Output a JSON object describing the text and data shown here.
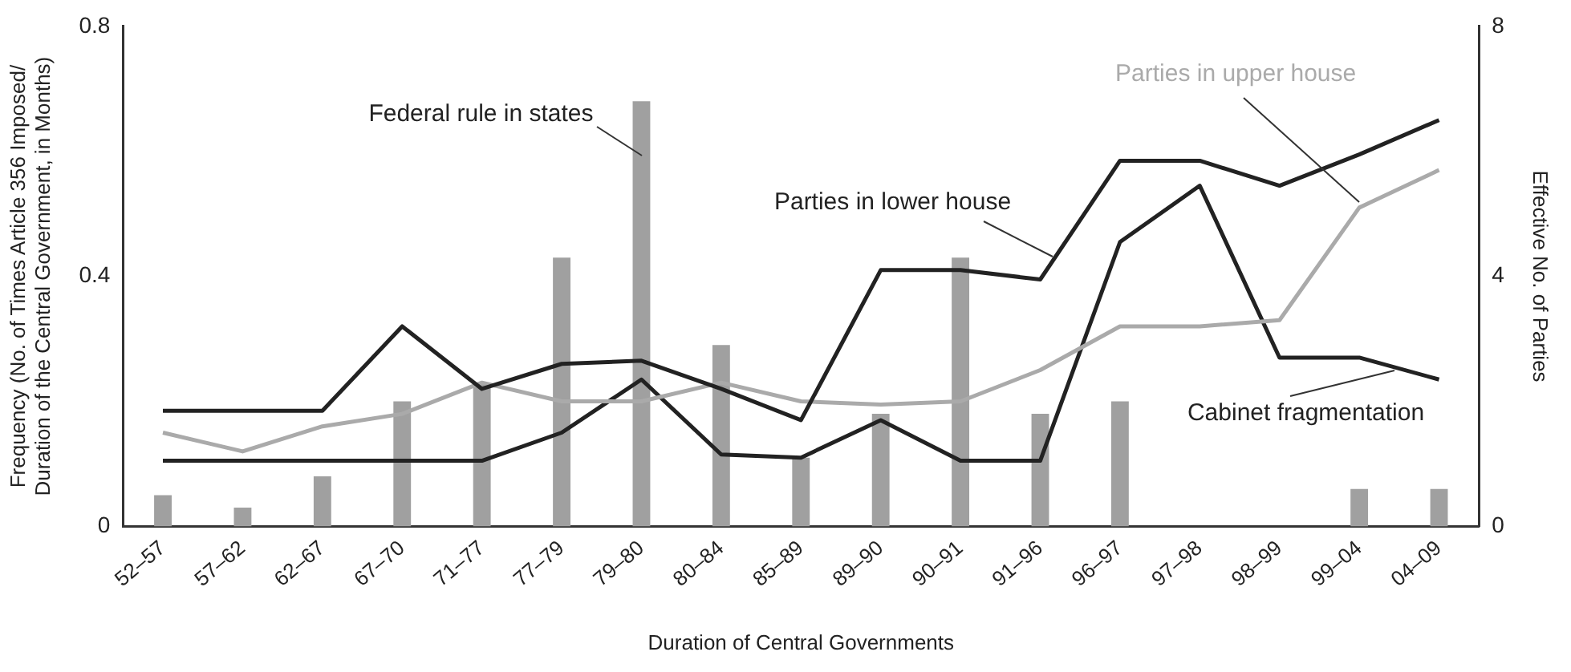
{
  "chart_data": {
    "type": "bar",
    "xlabel": "Duration of Central Governments",
    "ylabel": "Frequency (No. of Times Article 356 Imposed/ Duration of the Central Government, in Months)",
    "y2label": "Effective No. of Parties",
    "categories": [
      "52–57",
      "57–62",
      "62–67",
      "67–70",
      "71–77",
      "77–79",
      "79–80",
      "80–84",
      "85–89",
      "89–90",
      "90–91",
      "91–96",
      "96–97",
      "97–98",
      "98–99",
      "99–04",
      "04–09"
    ],
    "series": [
      {
        "name": "Federal rule in states",
        "color": "#a0a0a0",
        "values": [
          0.05,
          0.03,
          0.08,
          0.2,
          0.23,
          0.43,
          0.68,
          0.29,
          0.11,
          0.18,
          0.43,
          0.18,
          0.2,
          0,
          0,
          0.06,
          0.06
        ]
      },
      {
        "name": "Parties in lower house",
        "type": "line",
        "axis": "y2",
        "color": "#222222",
        "values": [
          1.85,
          1.85,
          1.85,
          3.2,
          2.2,
          2.6,
          2.65,
          2.2,
          1.7,
          4.1,
          4.1,
          3.95,
          5.85,
          5.85,
          5.45,
          5.95,
          6.5
        ]
      },
      {
        "name": "Parties in upper house",
        "type": "line",
        "axis": "y2",
        "color": "#aaaaaa",
        "values": [
          1.5,
          1.2,
          1.6,
          1.8,
          2.3,
          2.0,
          2.0,
          2.3,
          2.0,
          1.95,
          2.0,
          2.5,
          3.2,
          3.2,
          3.3,
          5.1,
          5.7
        ]
      },
      {
        "name": "Cabinet fragmentation",
        "type": "line",
        "axis": "y2",
        "color": "#222222",
        "values": [
          1.05,
          1.05,
          1.05,
          1.05,
          1.05,
          1.5,
          2.35,
          1.15,
          1.1,
          1.7,
          1.05,
          1.05,
          4.55,
          5.45,
          2.7,
          2.7,
          2.35
        ]
      }
    ],
    "ylim": [
      0,
      0.8
    ],
    "yticks": [
      0,
      0.4,
      0.8
    ],
    "y2lim": [
      0,
      8
    ],
    "y2ticks": [
      0,
      4,
      8
    ],
    "grid": false,
    "legend": false,
    "marker": "none",
    "line_style": "solid"
  }
}
